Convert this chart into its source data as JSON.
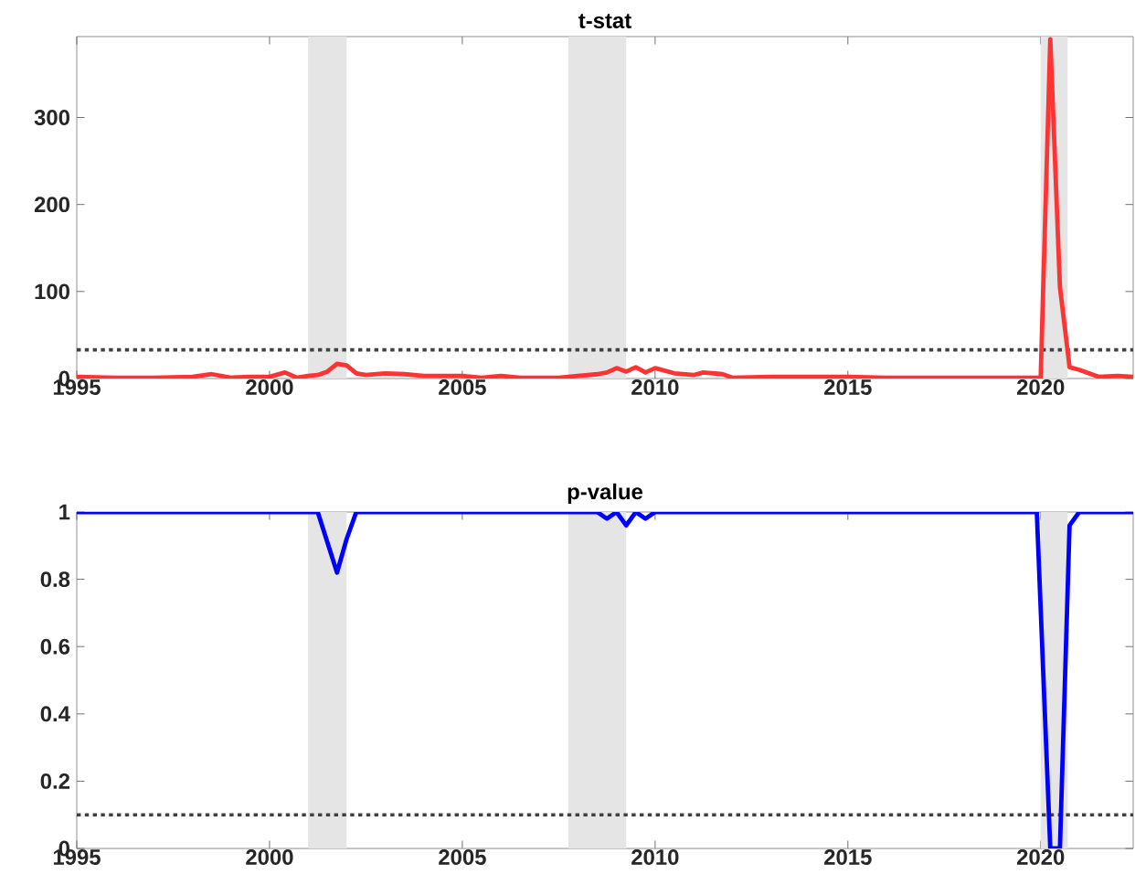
{
  "chart_data": [
    {
      "type": "line",
      "title": "t-stat",
      "xlim": [
        1995,
        2022.4
      ],
      "xticks": [
        1995,
        2000,
        2005,
        2010,
        2015,
        2020
      ],
      "ylim": [
        0,
        393
      ],
      "yticks": [
        0,
        100,
        200,
        300
      ],
      "series": [
        {
          "color": "#ff3333",
          "x": [
            1995,
            1996,
            1997,
            1998,
            1998.5,
            1999,
            1999.5,
            2000,
            2000.4,
            2000.7,
            2001,
            2001.25,
            2001.5,
            2001.75,
            2002,
            2002.25,
            2002.5,
            2003,
            2003.5,
            2004,
            2005,
            2005.5,
            2006,
            2006.5,
            2007.5,
            2008,
            2008.5,
            2008.75,
            2009,
            2009.25,
            2009.5,
            2009.75,
            2010,
            2010.5,
            2011,
            2011.25,
            2011.75,
            2012,
            2013,
            2014,
            2015,
            2016,
            2017,
            2018,
            2019,
            2019.75,
            2020,
            2020.25,
            2020.5,
            2020.75,
            2021,
            2021.5,
            2022,
            2022.4
          ],
          "values": [
            2,
            1,
            1,
            2,
            5,
            1,
            2,
            2,
            7,
            1,
            3,
            4,
            8,
            17,
            15,
            6,
            4,
            6,
            5,
            3,
            3,
            1,
            3,
            1,
            1,
            3,
            5,
            7,
            12,
            8,
            13,
            7,
            12,
            6,
            4,
            7,
            5,
            1,
            2,
            2,
            2,
            1,
            1,
            1,
            1,
            1,
            1,
            390,
            105,
            13,
            10,
            2,
            3,
            2
          ]
        }
      ],
      "ref_lines": [
        {
          "axis": "y",
          "value": 33,
          "color": "#404040",
          "line_style": "dotted"
        }
      ],
      "bands": [
        {
          "axis": "x",
          "from": 2001,
          "to": 2002,
          "color": "#e5e5e5"
        },
        {
          "axis": "x",
          "from": 2007.75,
          "to": 2009.25,
          "color": "#e5e5e5"
        },
        {
          "axis": "x",
          "from": 2020,
          "to": 2020.7,
          "color": "#e5e5e5"
        }
      ]
    },
    {
      "type": "line",
      "title": "p-value",
      "xlim": [
        1995,
        2022.4
      ],
      "xticks": [
        1995,
        2000,
        2005,
        2010,
        2015,
        2020
      ],
      "ylim": [
        0,
        1
      ],
      "yticks": [
        0,
        0.2,
        0.4,
        0.6,
        0.8,
        1
      ],
      "series": [
        {
          "color": "#0000ff",
          "x": [
            1995,
            2001.25,
            2001.75,
            2002,
            2002.25,
            2008.5,
            2008.75,
            2009,
            2009.25,
            2009.5,
            2009.75,
            2010,
            2019.9,
            2020.25,
            2020.5,
            2020.75,
            2021,
            2022.4
          ],
          "values": [
            1,
            1,
            0.82,
            0.92,
            1,
            1,
            0.98,
            1,
            0.96,
            1,
            0.98,
            1,
            1,
            0,
            0,
            0.96,
            1,
            1
          ]
        }
      ],
      "ref_lines": [
        {
          "axis": "y",
          "value": 0.1,
          "color": "#404040",
          "line_style": "dotted"
        }
      ],
      "bands": [
        {
          "axis": "x",
          "from": 2001,
          "to": 2002,
          "color": "#e5e5e5"
        },
        {
          "axis": "x",
          "from": 2007.75,
          "to": 2009.25,
          "color": "#e5e5e5"
        },
        {
          "axis": "x",
          "from": 2020,
          "to": 2020.7,
          "color": "#e5e5e5"
        }
      ]
    }
  ]
}
